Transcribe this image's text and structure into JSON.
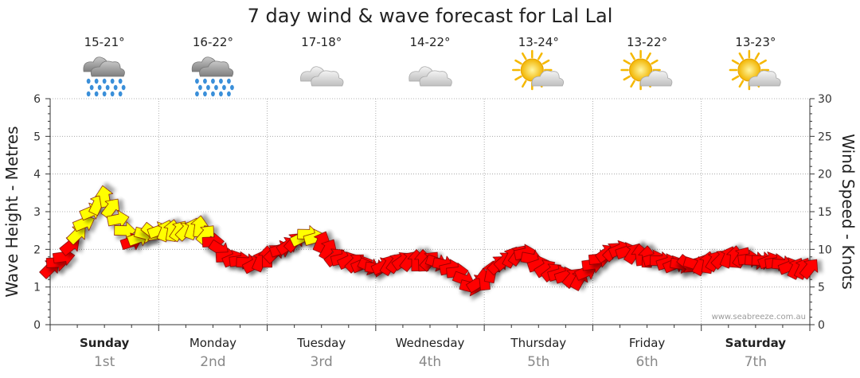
{
  "chart_data": {
    "type": "line",
    "title": "7 day wind & wave forecast for Lal Lal",
    "ylabel": "Wave Height - Metres",
    "y2label": "Wind Speed - Knots",
    "ylim": [
      0,
      6
    ],
    "y2lim": [
      0,
      30
    ],
    "yticks": [
      "0",
      "1",
      "2",
      "3",
      "4",
      "5",
      "6"
    ],
    "y2ticks": [
      "0",
      "5",
      "10",
      "15",
      "20",
      "25",
      "30"
    ],
    "grid": true,
    "watermark": "www.seabreeze.com.au",
    "days": [
      {
        "name": "Sunday",
        "date": "1st",
        "bold": true,
        "temp": "15-21°",
        "icon": "rain-cloud-icon"
      },
      {
        "name": "Monday",
        "date": "2nd",
        "bold": false,
        "temp": "16-22°",
        "icon": "rain-cloud-icon"
      },
      {
        "name": "Tuesday",
        "date": "3rd",
        "bold": false,
        "temp": "17-18°",
        "icon": "cloud-icon"
      },
      {
        "name": "Wednesday",
        "date": "4th",
        "bold": false,
        "temp": "14-22°",
        "icon": "cloud-icon"
      },
      {
        "name": "Thursday",
        "date": "5th",
        "bold": false,
        "temp": "13-24°",
        "icon": "sun-cloud-icon"
      },
      {
        "name": "Friday",
        "date": "6th",
        "bold": false,
        "temp": "13-22°",
        "icon": "sun-cloud-icon"
      },
      {
        "name": "Saturday",
        "date": "7th",
        "bold": true,
        "temp": "13-23°",
        "icon": "sun-cloud-icon"
      }
    ],
    "series": [
      {
        "unit": "knots",
        "color_low": "#ff0000",
        "color_high": "#ffff00",
        "x_hours": [
          0,
          3,
          6,
          9,
          12,
          15,
          18,
          21,
          24,
          27,
          30,
          33,
          36,
          39,
          42,
          45,
          48,
          51,
          54,
          57,
          60,
          63,
          66,
          69,
          72,
          75,
          78,
          81,
          84,
          87,
          90,
          93,
          96,
          99,
          102,
          105,
          108,
          111,
          114,
          117,
          120,
          123,
          126,
          129,
          132,
          135,
          138,
          141,
          144,
          147,
          150,
          153,
          156,
          159,
          162,
          165,
          168
        ],
        "values": [
          7.5,
          9,
          12,
          15,
          17,
          14,
          11,
          12,
          12.5,
          12.5,
          12.5,
          13,
          11,
          9,
          8.5,
          8,
          9,
          10,
          11,
          12,
          11,
          9,
          8.5,
          8,
          7.5,
          8,
          8.5,
          8.5,
          8.5,
          8,
          7,
          5,
          6,
          8,
          9,
          9.5,
          8,
          7,
          6.5,
          6,
          8,
          9.5,
          10,
          9.5,
          9,
          8.5,
          8,
          8,
          8,
          8.5,
          9,
          9,
          8.5,
          8.5,
          8,
          7.5,
          7.5
        ]
      }
    ]
  }
}
